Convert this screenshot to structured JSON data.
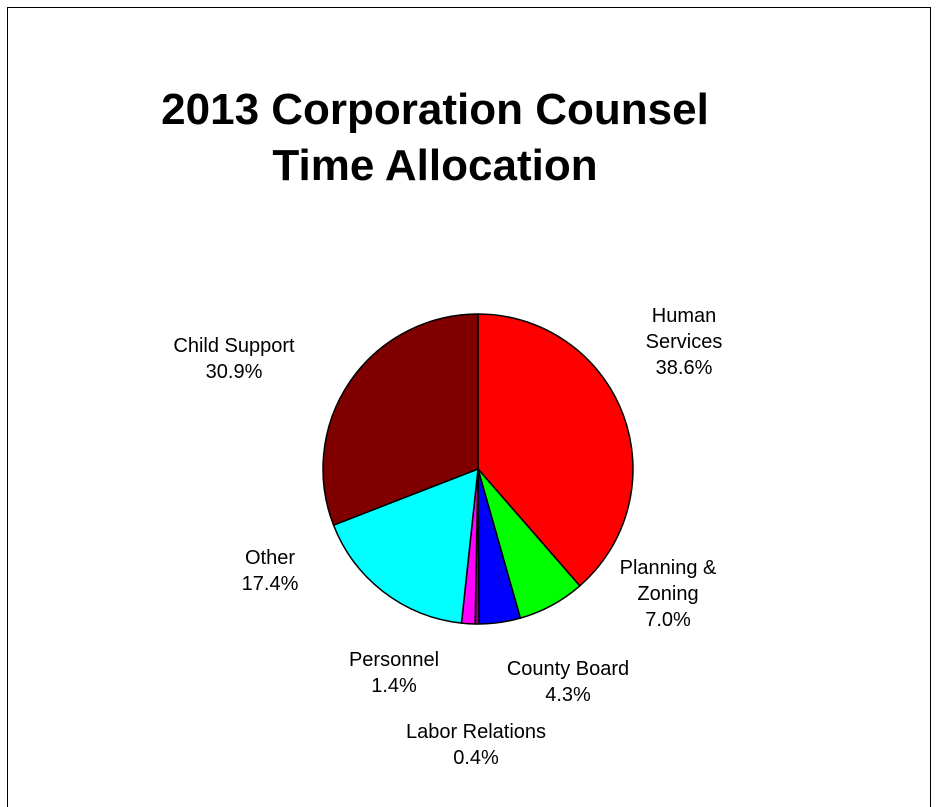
{
  "chart_data": {
    "type": "pie",
    "title_lines": [
      "2013 Corporation Counsel",
      "Time Allocation"
    ],
    "slices": [
      {
        "label_lines": [
          "Human",
          "Services"
        ],
        "value_label": "38.6%",
        "value": 38.6,
        "color": "#ff0000"
      },
      {
        "label_lines": [
          "Planning &",
          "Zoning"
        ],
        "value_label": "7.0%",
        "value": 7.0,
        "color": "#00ff00"
      },
      {
        "label_lines": [
          "County Board"
        ],
        "value_label": "4.3%",
        "value": 4.3,
        "color": "#0000ff"
      },
      {
        "label_lines": [
          "Labor Relations"
        ],
        "value_label": "0.4%",
        "value": 0.4,
        "color": "#800080"
      },
      {
        "label_lines": [
          "Personnel"
        ],
        "value_label": "1.4%",
        "value": 1.4,
        "color": "#ff00ff"
      },
      {
        "label_lines": [
          "Other"
        ],
        "value_label": "17.4%",
        "value": 17.4,
        "color": "#00ffff"
      },
      {
        "label_lines": [
          "Child Support"
        ],
        "value_label": "30.9%",
        "value": 30.9,
        "color": "#800000"
      }
    ],
    "start_angle": "12 o'clock",
    "direction": "clockwise",
    "legend": "none"
  }
}
